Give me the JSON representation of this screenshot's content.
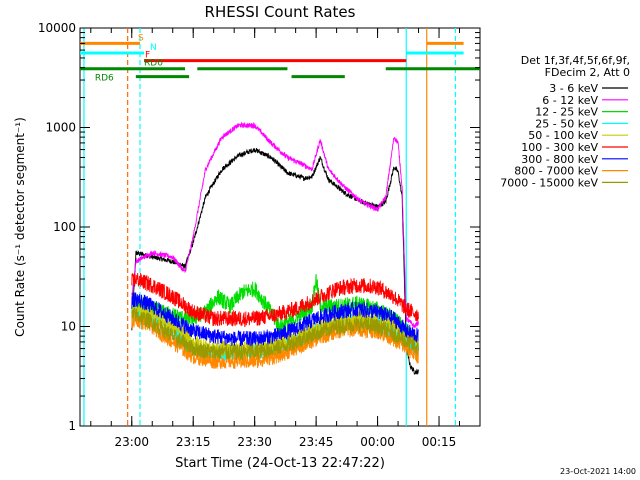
{
  "chart_data": {
    "type": "line",
    "title": "RHESSI Count Rates",
    "xlabel": "Start Time (24-Oct-13 22:47:22)",
    "ylabel": "Count Rate (s⁻¹ detector segment⁻¹)",
    "ylog": true,
    "ylim": [
      1,
      10000
    ],
    "xlim": [
      "22:47:22",
      "00:25:00"
    ],
    "y_ticks": [
      1,
      10,
      100,
      1000,
      10000
    ],
    "y_tick_labels": [
      "1",
      "10",
      "100",
      "1000",
      "10000"
    ],
    "x_ticks": [
      "23:00",
      "23:15",
      "23:30",
      "23:45",
      "00:00",
      "00:15"
    ],
    "footer_date": "23-Oct-2021 14:00",
    "legend": {
      "position": "right",
      "header": [
        "Det 1f,3f,4f,5f,6f,9f,",
        "FDecim 2, Att 0"
      ]
    },
    "series": [
      {
        "name": "3 - 6 keV",
        "color": "#000000",
        "x": [
          "23:00",
          "23:01",
          "23:05",
          "23:10",
          "23:13",
          "23:15",
          "23:18",
          "23:22",
          "23:26",
          "23:30",
          "23:34",
          "23:38",
          "23:42",
          "23:44",
          "23:46",
          "23:48",
          "23:52",
          "23:56",
          "00:00",
          "00:02",
          "00:04",
          "00:05",
          "00:06",
          "00:07",
          "00:08",
          "00:09",
          "00:10"
        ],
        "y": [
          9,
          55,
          50,
          45,
          40,
          70,
          200,
          380,
          520,
          600,
          500,
          350,
          310,
          320,
          500,
          300,
          220,
          180,
          160,
          180,
          400,
          360,
          200,
          6,
          4,
          3.5,
          3.5
        ]
      },
      {
        "name": "6 - 12 keV",
        "color": "#ff00ff",
        "x": [
          "23:00",
          "23:01",
          "23:05",
          "23:10",
          "23:13",
          "23:15",
          "23:18",
          "23:22",
          "23:26",
          "23:30",
          "23:34",
          "23:38",
          "23:42",
          "23:44",
          "23:46",
          "23:48",
          "23:52",
          "23:56",
          "00:00",
          "00:02",
          "00:04",
          "00:05",
          "00:06",
          "00:07",
          "00:08",
          "00:09",
          "00:10"
        ],
        "y": [
          20,
          45,
          55,
          50,
          35,
          80,
          380,
          800,
          1050,
          1050,
          700,
          500,
          420,
          380,
          750,
          380,
          250,
          180,
          150,
          200,
          800,
          700,
          250,
          12,
          11,
          10,
          11
        ]
      },
      {
        "name": "12 - 25 keV",
        "color": "#00dd00",
        "x": [
          "23:00",
          "23:01",
          "23:05",
          "23:10",
          "23:13",
          "23:15",
          "23:18",
          "23:21",
          "23:24",
          "23:27",
          "23:30",
          "23:33",
          "23:36",
          "23:40",
          "23:44",
          "23:45",
          "23:46",
          "23:50",
          "23:55",
          "00:00",
          "00:04",
          "00:06",
          "00:08",
          "00:10"
        ],
        "y": [
          15,
          17,
          15,
          13,
          12,
          12,
          14,
          20,
          16,
          22,
          24,
          16,
          10,
          12,
          16,
          30,
          16,
          16,
          17,
          15,
          12,
          10,
          8,
          7
        ]
      },
      {
        "name": "25 - 50 keV",
        "color": "#00ffff",
        "x": [
          "23:00",
          "23:01",
          "23:05",
          "23:10",
          "23:15",
          "23:20",
          "23:25",
          "23:30",
          "23:35",
          "23:40",
          "23:45",
          "23:50",
          "23:55",
          "00:00",
          "00:04",
          "00:07",
          "00:10"
        ],
        "y": [
          13,
          14,
          12,
          9,
          6,
          5.5,
          5.5,
          5.5,
          6,
          7,
          9,
          11,
          12,
          11,
          9,
          7,
          6
        ]
      },
      {
        "name": "50 - 100 keV",
        "color": "#cccc00",
        "x": [
          "23:00",
          "23:01",
          "23:05",
          "23:10",
          "23:15",
          "23:20",
          "23:25",
          "23:30",
          "23:35",
          "23:40",
          "23:45",
          "23:50",
          "23:55",
          "00:00",
          "00:04",
          "00:07",
          "00:10"
        ],
        "y": [
          14,
          15,
          13,
          10,
          7,
          6,
          6,
          6,
          6.5,
          7.5,
          9.5,
          11.5,
          12,
          11.5,
          10,
          8,
          7
        ]
      },
      {
        "name": "100 - 300 keV",
        "color": "#ff0000",
        "x": [
          "23:00",
          "23:01",
          "23:05",
          "23:10",
          "23:15",
          "23:20",
          "23:25",
          "23:30",
          "23:35",
          "23:40",
          "23:45",
          "23:50",
          "23:55",
          "00:00",
          "00:04",
          "00:07",
          "00:10"
        ],
        "y": [
          28,
          30,
          26,
          20,
          14,
          12,
          12,
          12,
          13,
          15,
          19,
          24,
          26,
          25,
          20,
          15,
          13
        ]
      },
      {
        "name": "300 - 800 keV",
        "color": "#0000ff",
        "x": [
          "23:00",
          "23:01",
          "23:05",
          "23:10",
          "23:15",
          "23:20",
          "23:25",
          "23:30",
          "23:35",
          "23:40",
          "23:45",
          "23:50",
          "23:55",
          "00:00",
          "00:04",
          "00:07",
          "00:10"
        ],
        "y": [
          18,
          19,
          16,
          12,
          9,
          8,
          7.5,
          7.5,
          8,
          9.5,
          12,
          14,
          15,
          14,
          12,
          9,
          8
        ]
      },
      {
        "name": "800 - 7000 keV",
        "color": "#ff8800",
        "x": [
          "23:00",
          "23:01",
          "23:05",
          "23:10",
          "23:15",
          "23:20",
          "23:25",
          "23:30",
          "23:35",
          "23:40",
          "23:45",
          "23:50",
          "23:55",
          "00:00",
          "00:04",
          "00:07",
          "00:10"
        ],
        "y": [
          11,
          12,
          10,
          7,
          5,
          4.5,
          4.5,
          4.5,
          5,
          6,
          7.5,
          9,
          9.5,
          9,
          7.5,
          6,
          5
        ]
      },
      {
        "name": "7000 - 15000 keV",
        "color": "#999900",
        "x": [
          "23:00",
          "23:01",
          "23:05",
          "23:10",
          "23:15",
          "23:20",
          "23:25",
          "23:30",
          "23:35",
          "23:40",
          "23:45",
          "23:50",
          "23:55",
          "00:00",
          "00:04",
          "00:07",
          "00:10"
        ],
        "y": [
          13,
          13,
          11,
          8,
          6,
          5.5,
          5.5,
          5.5,
          6,
          7,
          8.5,
          10,
          10.5,
          10,
          8.5,
          7,
          6
        ]
      }
    ],
    "state_bars": [
      {
        "label": "S",
        "color": "#ff8800",
        "level": 7000,
        "segments": [
          [
            "22:47:22",
            "23:02"
          ],
          [
            "00:12",
            "00:21"
          ]
        ]
      },
      {
        "label": "N",
        "color": "#00ffff",
        "level": 5600,
        "segments": [
          [
            "22:47:22",
            "23:03"
          ],
          [
            "00:07",
            "00:21"
          ]
        ]
      },
      {
        "label": "F",
        "color": "#ff0000",
        "level": 4700,
        "segments": [
          [
            "23:03",
            "00:07"
          ]
        ]
      },
      {
        "label": "RD0",
        "color": "#008800",
        "level": 3900,
        "segments": [
          [
            "22:47:22",
            "23:13"
          ],
          [
            "23:16",
            "23:38"
          ],
          [
            "00:02",
            "00:25"
          ]
        ]
      },
      {
        "label": "RD6",
        "color": "#008800",
        "level": 3250,
        "segments": [
          [
            "23:01",
            "23:14"
          ],
          [
            "23:39",
            "23:52"
          ]
        ]
      }
    ],
    "vertical_markers": [
      {
        "x": "22:48:20",
        "color": "#00ffff",
        "style": "solid"
      },
      {
        "x": "22:59",
        "color": "#ff6600",
        "style": "dashed"
      },
      {
        "x": "23:02",
        "color": "#00ffff",
        "style": "dashed"
      },
      {
        "x": "00:07",
        "color": "#00ffff",
        "style": "solid"
      },
      {
        "x": "00:12",
        "color": "#ff8800",
        "style": "solid"
      },
      {
        "x": "00:19",
        "color": "#00ffff",
        "style": "dashed"
      }
    ]
  }
}
